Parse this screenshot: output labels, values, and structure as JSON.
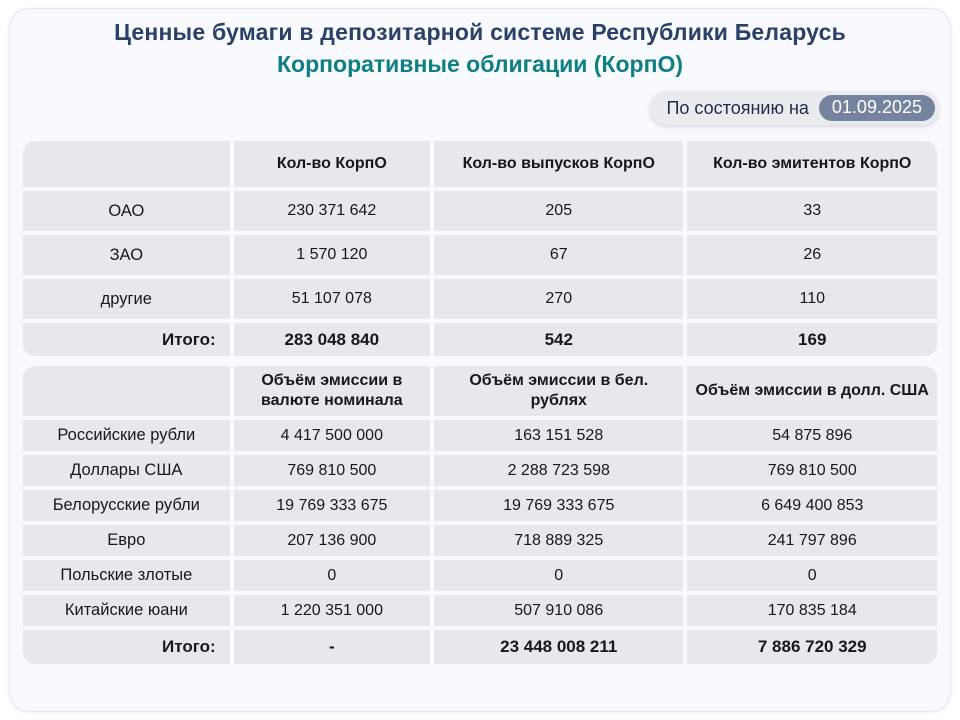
{
  "header": {
    "title": "Ценные бумаги в депозитарной системе Республики Беларусь",
    "subtitle": "Корпоративные облигации (КорпО)",
    "as_of_label": "По состоянию на",
    "as_of_date": "01.09.2025"
  },
  "colors": {
    "title": "#2b4068",
    "subtitle_teal": "#0e7f84",
    "card_background": "#f9fafd",
    "cell_background": "#e7e8ec",
    "date_pill": "#76839f"
  },
  "tables": [
    {
      "name": "counts",
      "columns": [
        "",
        "Кол-во КорпО",
        "Кол-во выпусков КорпО",
        "Кол-во эмитентов КорпО"
      ],
      "rows": [
        {
          "label": "ОАО",
          "values": [
            "230 371 642",
            "205",
            "33"
          ]
        },
        {
          "label": "ЗАО",
          "values": [
            "1 570 120",
            "67",
            "26"
          ]
        },
        {
          "label": "другие",
          "values": [
            "51 107 078",
            "270",
            "110"
          ]
        }
      ],
      "total": {
        "label": "Итого:",
        "values": [
          "283 048 840",
          "542",
          "169"
        ]
      }
    },
    {
      "name": "emission",
      "columns": [
        "",
        "Объём эмиссии в валюте номинала",
        "Объём эмиссии в бел. рублях",
        "Объём эмиссии в долл. США"
      ],
      "rows": [
        {
          "label": "Российские рубли",
          "values": [
            "4 417 500 000",
            "163 151 528",
            "54 875 896"
          ]
        },
        {
          "label": "Доллары США",
          "values": [
            "769 810 500",
            "2 288 723 598",
            "769 810 500"
          ]
        },
        {
          "label": "Белорусские рубли",
          "values": [
            "19 769 333 675",
            "19 769 333 675",
            "6 649 400 853"
          ]
        },
        {
          "label": "Евро",
          "values": [
            "207 136 900",
            "718 889 325",
            "241 797 896"
          ]
        },
        {
          "label": "Польские злотые",
          "values": [
            "0",
            "0",
            "0"
          ]
        },
        {
          "label": "Китайские юани",
          "values": [
            "1 220 351 000",
            "507 910 086",
            "170 835 184"
          ]
        }
      ],
      "total": {
        "label": "Итого:",
        "values": [
          "-",
          "23 448 008 211",
          "7 886 720 329"
        ]
      }
    }
  ]
}
